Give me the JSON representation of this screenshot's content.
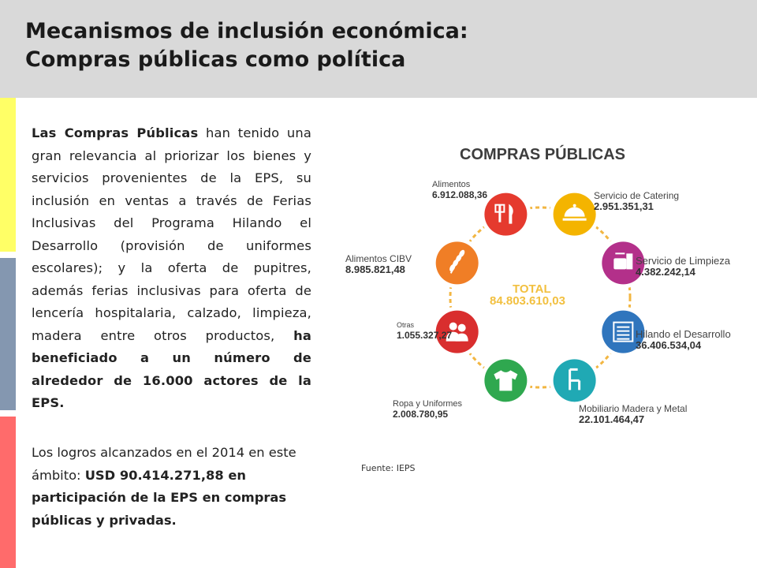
{
  "title": {
    "line1": "Mecanismos de inclusión económica:",
    "line2": "Compras públicas como política"
  },
  "paragraph1": {
    "lead_bold": "Las Compras Públicas",
    "body": " han tenido una gran relevancia al priorizar los bienes y servicios provenientes de la EPS, su inclusión en ventas a través de Ferias Inclusivas del Programa Hilando el Desarrollo (provisión de uniformes escolares); y la oferta de pupitres, además ferias inclusivas para oferta de lencería hospitalaria, calzado, limpieza, madera entre otros productos, ",
    "tail_bold": "ha beneficiado a un número de alrededor de 16.000 actores de la EPS."
  },
  "paragraph2": {
    "lead": "Los logros alcanzados en el 2014 en este ámbito: ",
    "bold": "USD 90.414.271,88 en participación de la EPS en compras públicas y privadas."
  },
  "infographic": {
    "heading": "COMPRAS PÚBLICAS",
    "total_label": "TOTAL",
    "total_value": "84.803.610,03",
    "items": [
      {
        "label": "Alimentos",
        "value": "6.912.088,36",
        "color": "#e53a2e",
        "icon": "fork-knife-icon"
      },
      {
        "label": "Servicio de Catering",
        "value": "2.951.351,31",
        "color": "#f4b400",
        "icon": "cloche-icon"
      },
      {
        "label": "Servicio de Limpieza",
        "value": "4.382.242,14",
        "color": "#b3308a",
        "icon": "cleaning-icon"
      },
      {
        "label": "Hilando el Desarrollo",
        "value": "36.406.534,04",
        "color": "#2f75bd",
        "icon": "fabric-roll-icon"
      },
      {
        "label": "Mobiliario Madera y Metal",
        "value": "22.101.464,47",
        "color": "#20a9b4",
        "icon": "chair-icon"
      },
      {
        "label": "Ropa y Uniformes",
        "value": "2.008.780,95",
        "color": "#2fa84f",
        "icon": "tshirt-icon"
      },
      {
        "label": "Otras",
        "value": "1.055.327,27",
        "color": "#d92e2e",
        "icon": "people-icon"
      },
      {
        "label": "Alimentos CIBV",
        "value": "8.985.821,48",
        "color": "#f07e26",
        "icon": "wheat-icon"
      }
    ]
  },
  "source": "Fuente: IEPS"
}
